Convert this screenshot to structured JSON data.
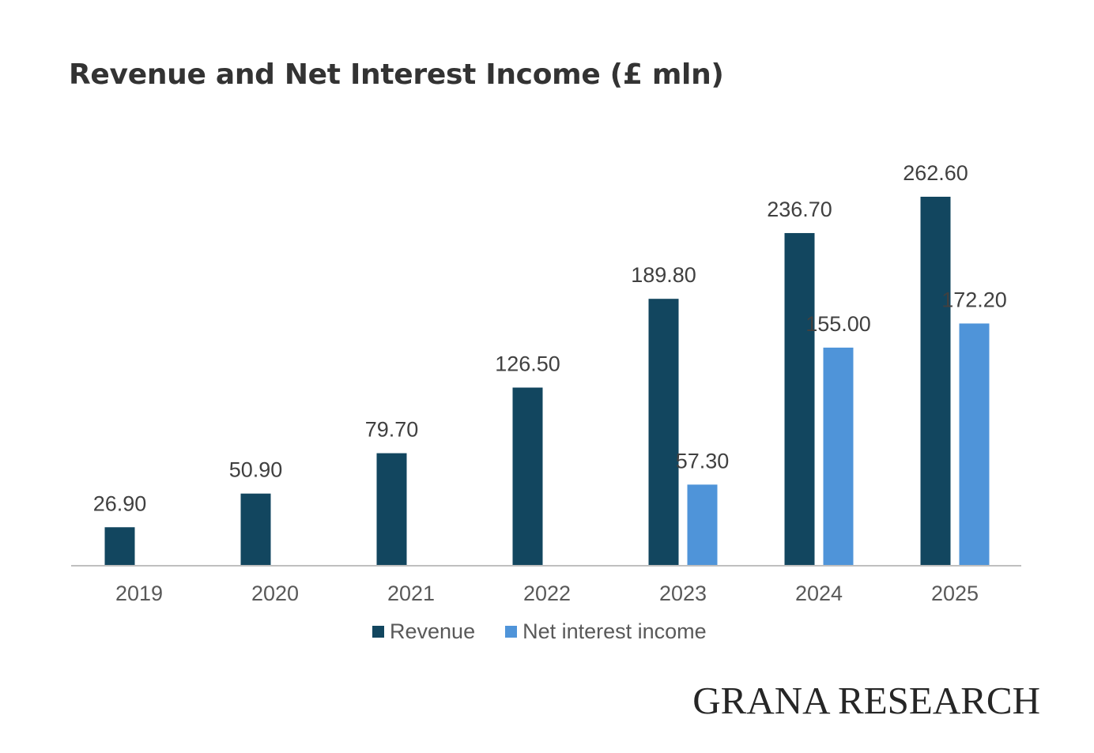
{
  "chart_data": {
    "type": "bar",
    "title": "Revenue and Net Interest Income (£ mln)",
    "xlabel": "",
    "ylabel": "",
    "categories": [
      "2019",
      "2020",
      "2021",
      "2022",
      "2023",
      "2024",
      "2025"
    ],
    "series": [
      {
        "name": "Revenue",
        "color": "#12465f",
        "values": [
          26.9,
          50.9,
          79.7,
          126.5,
          189.8,
          236.7,
          262.6
        ],
        "labels": [
          "26.90",
          "50.90",
          "79.70",
          "126.50",
          "189.80",
          "236.70",
          "262.60"
        ]
      },
      {
        "name": "Net interest income",
        "color": "#4f94d9",
        "values": [
          null,
          null,
          null,
          null,
          57.3,
          155.0,
          172.2
        ],
        "labels": [
          null,
          null,
          null,
          null,
          "57.30",
          "155.00",
          "172.20"
        ]
      }
    ],
    "ylim": [
      0,
      262.6
    ],
    "grid": false,
    "legend_position": "bottom"
  },
  "watermark": {
    "text": "GRANA RESEARCH"
  }
}
